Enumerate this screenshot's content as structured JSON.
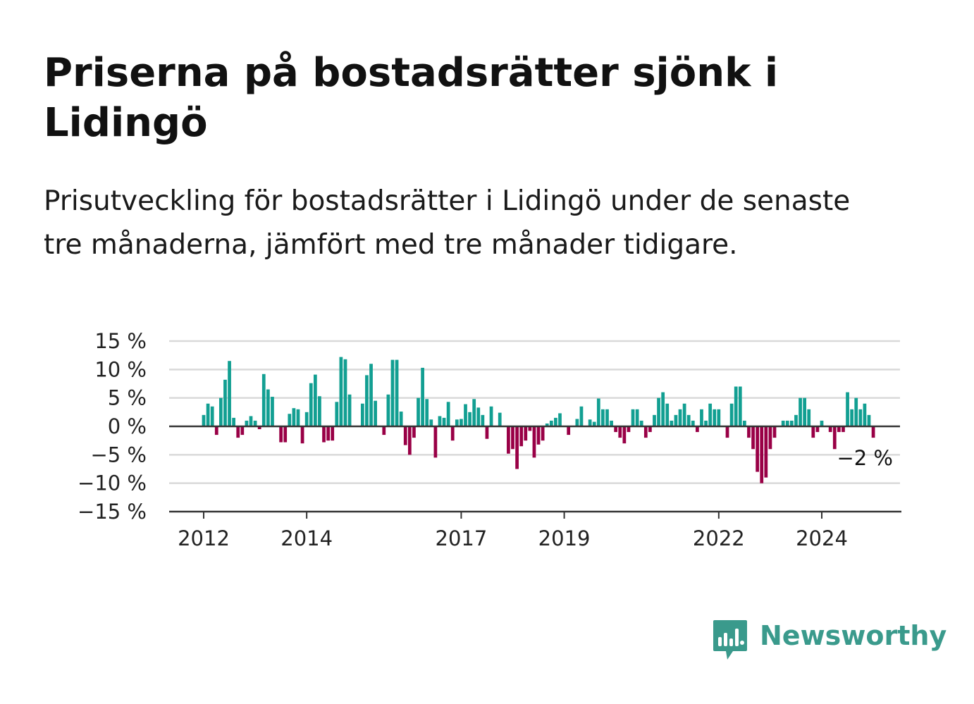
{
  "header": {
    "title": "Priserna på bostadsrätter sjönk i Lidingö",
    "subtitle": "Prisutveckling för bostadsrätter i Lidingö under de senaste tre månaderna, jämfört med tre månader tidigare."
  },
  "brand": {
    "name": "Newsworthy",
    "icon": "newsworthy-logo-icon",
    "color": "#3a9a8c"
  },
  "colors": {
    "positive": "#129f92",
    "negative": "#990046",
    "grid": "#d9d9d9",
    "axis": "#333333"
  },
  "chart_data": {
    "type": "bar",
    "title": "Priserna på bostadsrätter sjönk i Lidingö",
    "subtitle": "Prisutveckling för bostadsrätter i Lidingö under de senaste tre månaderna, jämfört med tre månader tidigare.",
    "x_start": "2012-01",
    "x_end": "2024-12",
    "ylim": [
      -15,
      15
    ],
    "yticks": [
      15,
      10,
      5,
      0,
      -5,
      -10,
      -15
    ],
    "ytick_labels": [
      "15 %",
      "10 %",
      "5 %",
      "0 %",
      "−5 %",
      "−10 %",
      "−15 %"
    ],
    "xticks": [
      2012,
      2014,
      2017,
      2019,
      2022,
      2024
    ],
    "xtick_labels": [
      "2012",
      "2014",
      "2017",
      "2019",
      "2022",
      "2024"
    ],
    "grid": true,
    "unit": "%",
    "last_value_label": "−2 %",
    "values": [
      2,
      4,
      3.5,
      -1.5,
      5,
      8.2,
      11.5,
      1.5,
      -2,
      -1.5,
      1,
      1.8,
      1,
      -0.5,
      9.2,
      6.5,
      5.2,
      0,
      -2.8,
      -2.8,
      2.2,
      3.2,
      3,
      -3,
      2.5,
      7.6,
      9.1,
      5.3,
      -2.8,
      -2.5,
      -2.5,
      4.3,
      12.2,
      11.8,
      5.6,
      0,
      0,
      4,
      9,
      11,
      4.5,
      0,
      -1.5,
      5.6,
      11.7,
      11.7,
      2.6,
      -3.3,
      -5,
      -2,
      5,
      10.3,
      4.8,
      1.2,
      -5.5,
      1.8,
      1.5,
      4.3,
      -2.5,
      1.2,
      1.3,
      3.9,
      2.5,
      4.8,
      3.3,
      2,
      -2.2,
      3.5,
      0,
      2.4,
      0,
      -4.8,
      -4,
      -7.5,
      -3.5,
      -2.5,
      -0.8,
      -5.5,
      -3.2,
      -2.5,
      0.5,
      1,
      1.5,
      2.3,
      0,
      -1.5,
      0,
      1.3,
      3.5,
      0,
      1.2,
      0.8,
      4.9,
      3,
      3,
      1,
      -1,
      -2,
      -3,
      -1,
      3,
      3,
      1,
      -2,
      -1,
      2,
      5,
      6,
      4,
      1,
      2,
      3,
      4,
      2,
      1,
      -1,
      3,
      1,
      4,
      3,
      3,
      0,
      -2,
      4,
      7,
      7,
      1,
      -2,
      -4,
      -8,
      -10,
      -9,
      -4,
      -2,
      0,
      1,
      1,
      1,
      2,
      5,
      5,
      3,
      -2,
      -1,
      1,
      0,
      -1,
      -4,
      -1,
      -1,
      6,
      3,
      5,
      3,
      4,
      2,
      -2
    ]
  }
}
